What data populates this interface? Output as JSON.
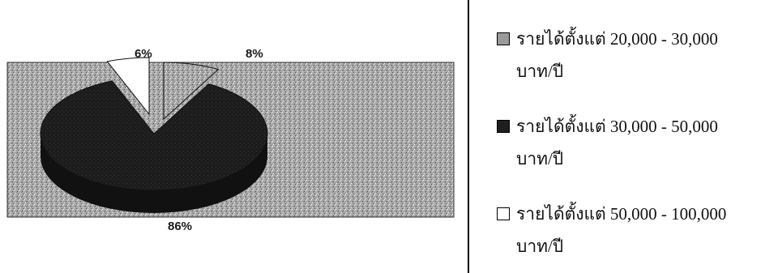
{
  "chart_data": {
    "type": "pie",
    "title": "",
    "slices": [
      {
        "label": "รายได้ตั้งแต่ 20,000 - 30,000 บาท/ปี",
        "value": 8,
        "value_label": "8%",
        "color": "#9a9a9a"
      },
      {
        "label": "รายได้ตั้งแต่ 30,000 - 50,000 บาท/ปี",
        "value": 86,
        "value_label": "86%",
        "color": "#1f1f1f"
      },
      {
        "label": "รายได้ตั้งแต่ 50,000 - 100,000 บาท/ปี",
        "value": 6,
        "value_label": "6%",
        "color": "#ffffff"
      }
    ],
    "legend_position": "right",
    "three_d": true
  },
  "legend": {
    "items": [
      {
        "line1": "รายได้ตั้งแต่ 20,000 - 30,000",
        "line2": "บาท/ปี",
        "swatch": "gray"
      },
      {
        "line1": "รายได้ตั้งแต่ 30,000 - 50,000",
        "line2": "บาท/ปี",
        "swatch": "black"
      },
      {
        "line1": "รายได้ตั้งแต่ 50,000 - 100,000",
        "line2": "บาท/ปี",
        "swatch": "white"
      }
    ]
  },
  "labels": {
    "slice_6": "6%",
    "slice_8": "8%",
    "slice_86": "86%"
  }
}
